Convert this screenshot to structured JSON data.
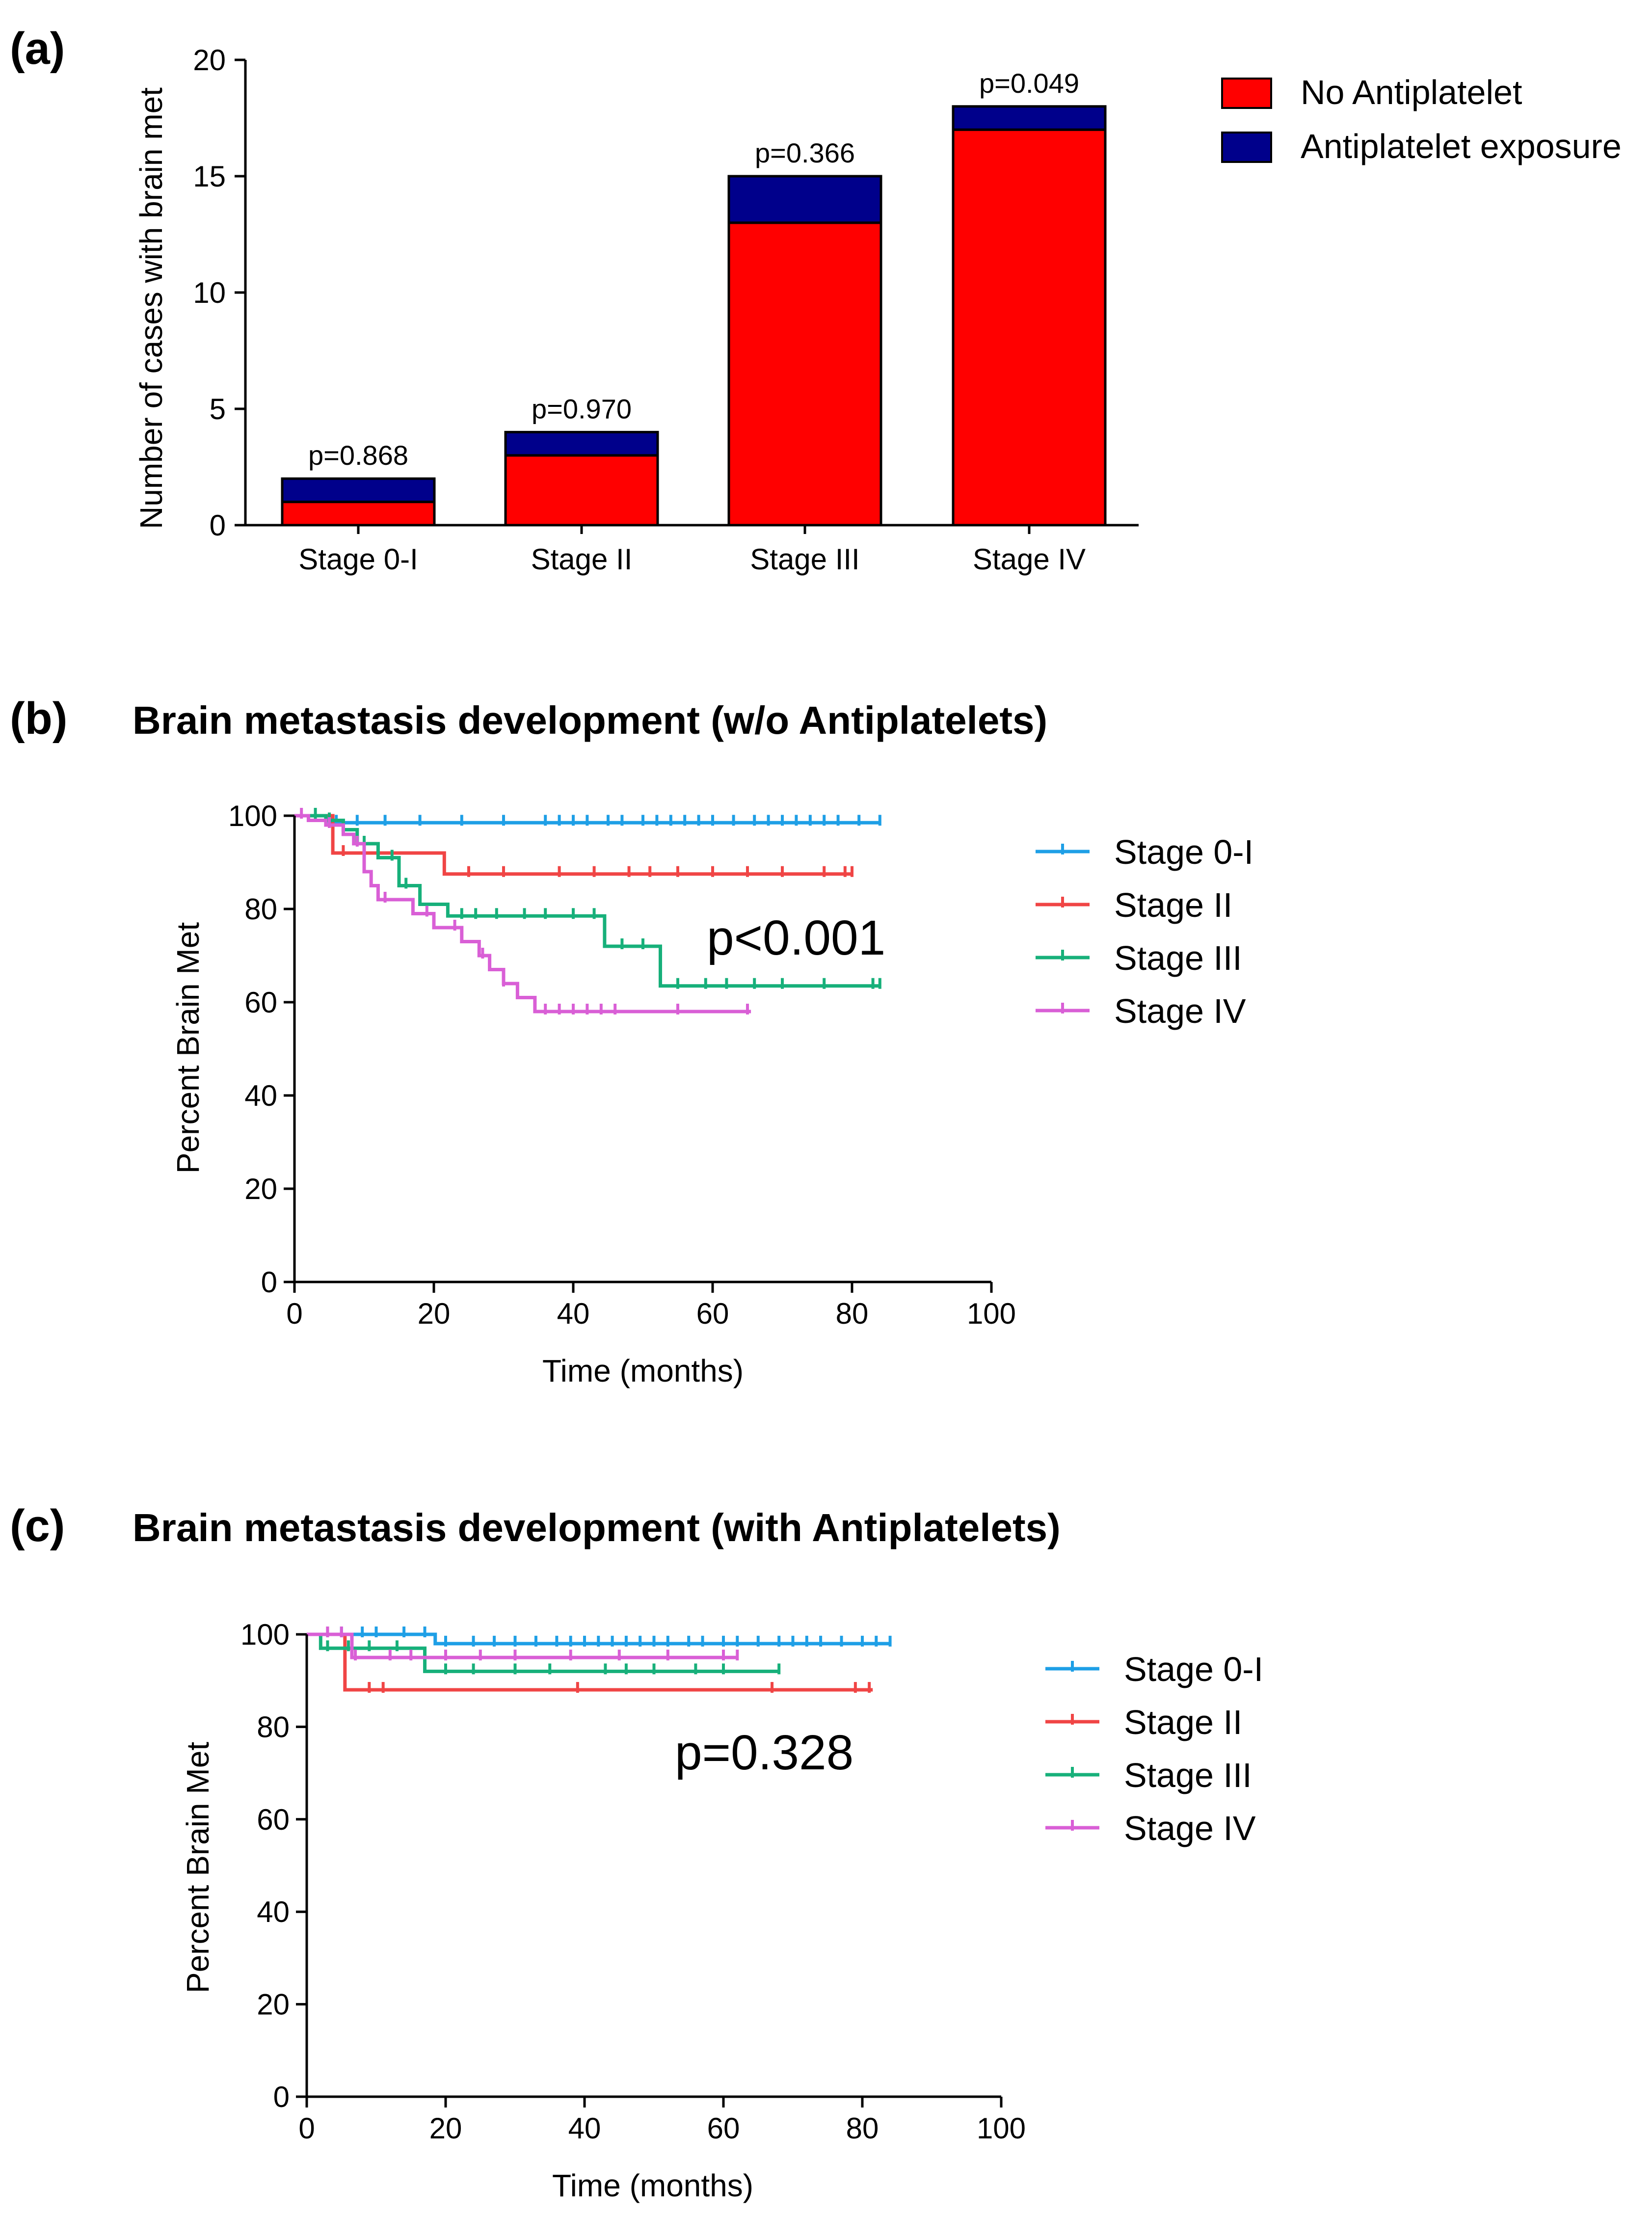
{
  "chart_data": [
    {
      "id": "a",
      "type": "bar",
      "stacked": true,
      "panel_label": "(a)",
      "title": "",
      "xlabel": "",
      "ylabel": "Number of cases with brain met",
      "categories": [
        "Stage 0-I",
        "Stage II",
        "Stage III",
        "Stage IV"
      ],
      "series": [
        {
          "name": "No Antiplatelet",
          "color": "#ff0000",
          "values": [
            1,
            3,
            13,
            17
          ]
        },
        {
          "name": "Antiplatelet exposure",
          "color": "#00008b",
          "values": [
            1,
            1,
            2,
            1
          ]
        }
      ],
      "annotations": [
        "p=0.868",
        "p=0.970",
        "p=0.366",
        "p=0.049"
      ],
      "ylim": [
        0,
        20
      ],
      "yticks": [
        0,
        5,
        10,
        15,
        20
      ],
      "legend_position": "top-right"
    },
    {
      "id": "b",
      "type": "line",
      "panel_label": "(b)",
      "title": "Brain metastasis development (w/o Antiplatelets)",
      "xlabel": "Time (months)",
      "ylabel": "Percent Brain Met",
      "xlim": [
        0,
        100
      ],
      "ylim": [
        0,
        100
      ],
      "xticks": [
        0,
        20,
        40,
        60,
        80,
        100
      ],
      "yticks": [
        0,
        20,
        40,
        60,
        80,
        100
      ],
      "annotation": "p<0.001",
      "legend_position": "right",
      "series": [
        {
          "name": "Stage 0-I",
          "color": "#1e9fe6",
          "steps": [
            [
              0,
              100
            ],
            [
              5,
              98.5
            ],
            [
              84,
              98.5
            ]
          ],
          "censors": [
            6,
            9,
            13,
            18,
            24,
            30,
            36,
            38,
            40,
            42,
            45,
            47,
            50,
            52,
            54,
            56,
            58,
            60,
            63,
            66,
            68,
            70,
            72,
            74,
            76,
            78,
            81,
            84
          ]
        },
        {
          "name": "Stage II",
          "color": "#f04545",
          "steps": [
            [
              0,
              100
            ],
            [
              5.5,
              92
            ],
            [
              21.5,
              87.5
            ],
            [
              80,
              87.5
            ]
          ],
          "censors": [
            7,
            10,
            25,
            30,
            38,
            43,
            48,
            51,
            55,
            60,
            65,
            70,
            76,
            79,
            80
          ]
        },
        {
          "name": "Stage III",
          "color": "#17b07a",
          "steps": [
            [
              0,
              100
            ],
            [
              4.5,
              99
            ],
            [
              7,
              97
            ],
            [
              9,
              94
            ],
            [
              12,
              91
            ],
            [
              15,
              85
            ],
            [
              18,
              81
            ],
            [
              22,
              78.5
            ],
            [
              44.5,
              72
            ],
            [
              52.5,
              63.5
            ],
            [
              84,
              63.5
            ]
          ],
          "censors": [
            3,
            5,
            10,
            14,
            16,
            24,
            26,
            29,
            33,
            36,
            40,
            43,
            47,
            50,
            55,
            59,
            62,
            66,
            70,
            76,
            83,
            84
          ]
        },
        {
          "name": "Stage IV",
          "color": "#d95fd6",
          "steps": [
            [
              0,
              100
            ],
            [
              2,
              99
            ],
            [
              4.5,
              98
            ],
            [
              7,
              96
            ],
            [
              8.5,
              94
            ],
            [
              10,
              88
            ],
            [
              11,
              85
            ],
            [
              12,
              82
            ],
            [
              17,
              79
            ],
            [
              20,
              76
            ],
            [
              24,
              73
            ],
            [
              26.5,
              70
            ],
            [
              28,
              67
            ],
            [
              30,
              64
            ],
            [
              32,
              61
            ],
            [
              34.5,
              58
            ],
            [
              65.5,
              58
            ]
          ],
          "censors": [
            1,
            5,
            9,
            13,
            19,
            23,
            27,
            30,
            36,
            38,
            40,
            42,
            44,
            46,
            55,
            65
          ]
        }
      ]
    },
    {
      "id": "c",
      "type": "line",
      "panel_label": "(c)",
      "title": "Brain metastasis development (with Antiplatelets)",
      "xlabel": "Time (months)",
      "ylabel": "Percent Brain Met",
      "xlim": [
        0,
        100
      ],
      "ylim": [
        0,
        100
      ],
      "xticks": [
        0,
        20,
        40,
        60,
        80,
        100
      ],
      "yticks": [
        0,
        20,
        40,
        60,
        80,
        100
      ],
      "annotation": "p=0.328",
      "legend_position": "right",
      "series": [
        {
          "name": "Stage 0-I",
          "color": "#1e9fe6",
          "steps": [
            [
              0,
              100
            ],
            [
              18.5,
              98
            ],
            [
              84,
              98
            ]
          ],
          "censors": [
            3,
            5,
            8,
            10,
            14,
            17,
            20,
            24,
            27,
            30,
            33,
            36,
            38,
            40,
            42,
            44,
            46,
            48,
            50,
            52,
            55,
            57,
            60,
            62,
            65,
            68,
            70,
            72,
            74,
            77,
            80,
            82,
            84
          ]
        },
        {
          "name": "Stage II",
          "color": "#f04545",
          "steps": [
            [
              0,
              100
            ],
            [
              5.5,
              88
            ],
            [
              81.5,
              88
            ]
          ],
          "censors": [
            3,
            9,
            11,
            39,
            67,
            79,
            81
          ]
        },
        {
          "name": "Stage III",
          "color": "#17b07a",
          "steps": [
            [
              0,
              100
            ],
            [
              2,
              97
            ],
            [
              17,
              92
            ],
            [
              68,
              92
            ]
          ],
          "censors": [
            3,
            6,
            9,
            13,
            20,
            24,
            30,
            35,
            43,
            46,
            50,
            56,
            60,
            68
          ]
        },
        {
          "name": "Stage IV",
          "color": "#d95fd6",
          "steps": [
            [
              0,
              100
            ],
            [
              6.5,
              95
            ],
            [
              62,
              95
            ]
          ],
          "censors": [
            3,
            5,
            7,
            12,
            15,
            20,
            25,
            30,
            38,
            45,
            52,
            60,
            62
          ]
        }
      ]
    }
  ]
}
